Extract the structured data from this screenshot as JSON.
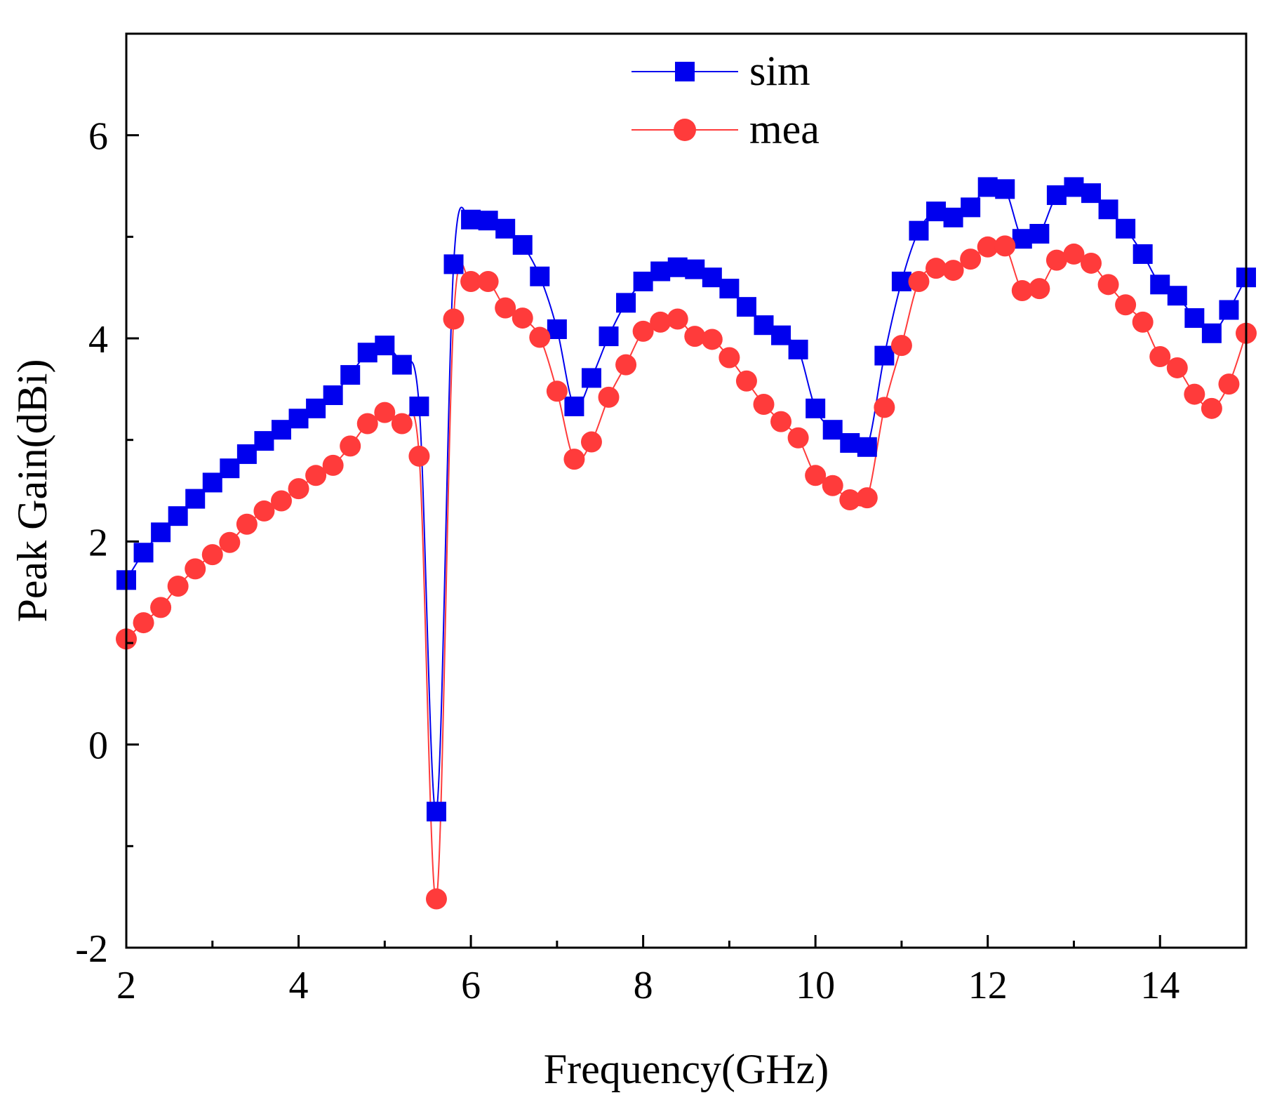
{
  "chart_data": {
    "type": "line",
    "title": "",
    "xlabel": "Frequency(GHz)",
    "ylabel": "Peak Gain(dBi)",
    "xlim": [
      2,
      15
    ],
    "ylim": [
      -2,
      7
    ],
    "xticks": [
      2,
      4,
      6,
      8,
      10,
      12,
      14
    ],
    "xticklabels": [
      "2",
      "4",
      "6",
      "8",
      "10",
      "12",
      "14"
    ],
    "yticks": [
      -2,
      0,
      2,
      4,
      6
    ],
    "yticklabels": [
      "-2",
      "0",
      "2",
      "4",
      "6"
    ],
    "grid": false,
    "legend_position": "top-center",
    "series": [
      {
        "name": "sim",
        "color": "#0000ee",
        "marker": "square",
        "x": [
          2.0,
          2.2,
          2.4,
          2.6,
          2.8,
          3.0,
          3.2,
          3.4,
          3.6,
          3.8,
          4.0,
          4.2,
          4.4,
          4.6,
          4.8,
          5.0,
          5.2,
          5.4,
          5.6,
          5.8,
          6.0,
          6.2,
          6.4,
          6.6,
          6.8,
          7.0,
          7.2,
          7.4,
          7.6,
          7.8,
          8.0,
          8.2,
          8.4,
          8.6,
          8.8,
          9.0,
          9.2,
          9.4,
          9.6,
          9.8,
          10.0,
          10.2,
          10.4,
          10.6,
          10.8,
          11.0,
          11.2,
          11.4,
          11.6,
          11.8,
          12.0,
          12.2,
          12.4,
          12.6,
          12.8,
          13.0,
          13.2,
          13.4,
          13.6,
          13.8,
          14.0,
          14.2,
          14.4,
          14.6,
          14.8,
          15.0
        ],
        "values": [
          1.62,
          1.89,
          2.09,
          2.25,
          2.42,
          2.58,
          2.72,
          2.86,
          2.99,
          3.1,
          3.21,
          3.31,
          3.44,
          3.64,
          3.86,
          3.93,
          3.74,
          3.33,
          -0.66,
          4.73,
          5.17,
          5.16,
          5.08,
          4.92,
          4.61,
          4.09,
          3.33,
          3.61,
          4.02,
          4.35,
          4.56,
          4.66,
          4.7,
          4.68,
          4.6,
          4.49,
          4.31,
          4.13,
          4.03,
          3.89,
          3.31,
          3.1,
          2.97,
          2.93,
          3.83,
          4.56,
          5.06,
          5.25,
          5.19,
          5.29,
          5.49,
          5.47,
          4.98,
          5.03,
          5.41,
          5.49,
          5.43,
          5.27,
          5.08,
          4.83,
          4.53,
          4.42,
          4.2,
          4.05,
          4.28,
          4.6
        ]
      },
      {
        "name": "mea",
        "color": "#ff3b3b",
        "marker": "circle",
        "x": [
          2.0,
          2.2,
          2.4,
          2.6,
          2.8,
          3.0,
          3.2,
          3.4,
          3.6,
          3.8,
          4.0,
          4.2,
          4.4,
          4.6,
          4.8,
          5.0,
          5.2,
          5.4,
          5.6,
          5.8,
          6.0,
          6.2,
          6.4,
          6.6,
          6.8,
          7.0,
          7.2,
          7.4,
          7.6,
          7.8,
          8.0,
          8.2,
          8.4,
          8.6,
          8.8,
          9.0,
          9.2,
          9.4,
          9.6,
          9.8,
          10.0,
          10.2,
          10.4,
          10.6,
          10.8,
          11.0,
          11.2,
          11.4,
          11.6,
          11.8,
          12.0,
          12.2,
          12.4,
          12.6,
          12.8,
          13.0,
          13.2,
          13.4,
          13.6,
          13.8,
          14.0,
          14.2,
          14.4,
          14.6,
          14.8,
          15.0
        ],
        "values": [
          1.04,
          1.2,
          1.35,
          1.56,
          1.73,
          1.87,
          1.99,
          2.17,
          2.3,
          2.4,
          2.52,
          2.65,
          2.75,
          2.94,
          3.16,
          3.27,
          3.16,
          2.84,
          -1.52,
          4.19,
          4.56,
          4.56,
          4.3,
          4.2,
          4.01,
          3.48,
          2.81,
          2.98,
          3.42,
          3.74,
          4.07,
          4.16,
          4.19,
          4.02,
          3.99,
          3.81,
          3.58,
          3.35,
          3.18,
          3.02,
          2.65,
          2.55,
          2.41,
          2.43,
          3.32,
          3.93,
          4.56,
          4.69,
          4.67,
          4.78,
          4.9,
          4.91,
          4.47,
          4.49,
          4.77,
          4.83,
          4.74,
          4.53,
          4.33,
          4.16,
          3.82,
          3.71,
          3.45,
          3.31,
          3.55,
          4.05
        ]
      }
    ]
  }
}
